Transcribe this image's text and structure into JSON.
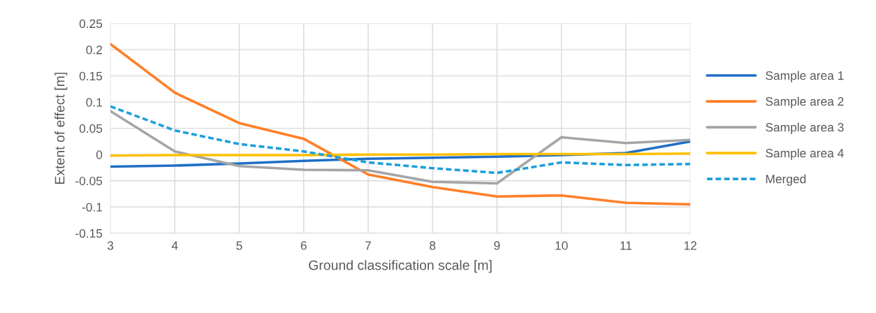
{
  "chart_data": {
    "type": "line",
    "xlabel": "Ground classification scale [m]",
    "ylabel": "Extent of effect [m]",
    "x": [
      3,
      4,
      5,
      6,
      7,
      8,
      9,
      10,
      11,
      12
    ],
    "series": [
      {
        "name": "Sample area 1",
        "color": "#1f6fc5",
        "values": [
          -0.023,
          -0.021,
          -0.017,
          -0.012,
          -0.008,
          -0.006,
          -0.004,
          -0.001,
          0.003,
          0.025
        ]
      },
      {
        "name": "Sample area 2",
        "color": "#ff7f27",
        "values": [
          0.211,
          0.118,
          0.06,
          0.03,
          -0.038,
          -0.062,
          -0.08,
          -0.078,
          -0.092,
          -0.095
        ]
      },
      {
        "name": "Sample area 3",
        "color": "#a5a5a5",
        "values": [
          0.083,
          0.006,
          -0.022,
          -0.029,
          -0.03,
          -0.052,
          -0.055,
          0.033,
          0.022,
          0.028
        ]
      },
      {
        "name": "Sample area 4",
        "color": "#ffc000",
        "values": [
          -0.002,
          -0.001,
          -0.001,
          -0.001,
          0,
          0,
          0.001,
          0.001,
          0.001,
          0.002
        ]
      },
      {
        "name": "Merged",
        "color": "#1e9fdc",
        "line_style": "dashed",
        "values": [
          0.092,
          0.046,
          0.02,
          0.006,
          -0.015,
          -0.026,
          -0.035,
          -0.015,
          -0.02,
          -0.018
        ]
      }
    ],
    "xlim": [
      3,
      12
    ],
    "xticks": [
      3,
      4,
      5,
      6,
      7,
      8,
      9,
      10,
      11,
      12
    ],
    "ylim": [
      -0.15,
      0.25
    ],
    "yticks": [
      -0.15,
      -0.1,
      -0.05,
      0,
      0.05,
      0.1,
      0.15,
      0.2,
      0.25
    ],
    "grid": true,
    "legend": "right",
    "marker": "none",
    "line_style": "solid"
  }
}
